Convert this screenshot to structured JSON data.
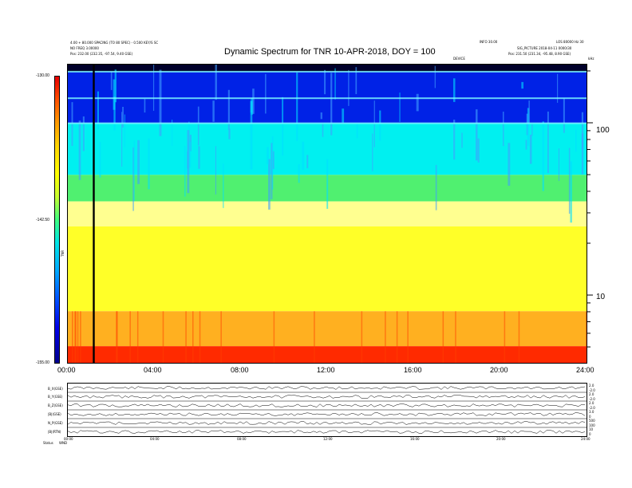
{
  "header": {
    "title": "Dynamic Spectrum for TNR 10-APR-2018, DOY = 100",
    "left_line1": "4.00 + 80.000 SPACING (TO 80 SPEC) - 0.500 KEY/S SC",
    "left_line2": "NO FREQ 3.00000",
    "left_line3": "Pos: 232.00 (232.35, -97.54, 9.40 GSE)",
    "right_top": "INFO 30.00",
    "right_top2": "LOS 80000 Hz 30",
    "right_line2": "SIG_PICTURE 2018-04-11 0000/30",
    "right_line3": "Pos: 231.50 (231.34, -95.48, 8.90 GSE)",
    "mid_label": "DEVICE",
    "corner": "kHz"
  },
  "colorbar": {
    "label": "TNR",
    "ticks": [
      "-130.00",
      "-142.50",
      "-155.00"
    ],
    "colors": [
      "#e60000",
      "#ffff00",
      "#00e6e6",
      "#0000e6",
      "#000090"
    ]
  },
  "chart_data": {
    "type": "heatmap",
    "title": "Dynamic Spectrum for TNR 10-APR-2018, DOY = 100",
    "x_ticks": [
      "00:00",
      "04:00",
      "08:00",
      "12:00",
      "16:00",
      "20:00",
      "24:00"
    ],
    "xlim": [
      0,
      24
    ],
    "y_right_ticks": [
      "100",
      "10"
    ],
    "y_scale": "log",
    "ylim_khz": [
      4,
      220
    ],
    "colorbar_range_db": [
      -155.0,
      -130.0
    ],
    "bands": [
      {
        "top_khz": 220,
        "bottom_khz": 200,
        "level": "dark-blue"
      },
      {
        "top_khz": 200,
        "bottom_khz": 100,
        "level": "blue"
      },
      {
        "top_khz": 100,
        "bottom_khz": 50,
        "level": "cyan"
      },
      {
        "top_khz": 50,
        "bottom_khz": 35,
        "level": "green"
      },
      {
        "top_khz": 35,
        "bottom_khz": 25,
        "level": "light-yellow"
      },
      {
        "top_khz": 25,
        "bottom_khz": 8,
        "level": "yellow"
      },
      {
        "top_khz": 8,
        "bottom_khz": 5,
        "level": "orange"
      },
      {
        "top_khz": 5,
        "bottom_khz": 4,
        "level": "red"
      }
    ],
    "data_gap_hours": [
      1.2
    ]
  },
  "bottom_panel": {
    "row_labels": [
      "B_X(GSE)",
      "B_Y(GSE)",
      "B_Z(GSE)",
      "|B|(GSE)",
      "N_P(GSE)",
      "|B|(RTN)"
    ],
    "right_ticks": [
      [
        "2.0",
        "-2.0"
      ],
      [
        "2.0",
        "-2.0"
      ],
      [
        "2.0",
        "-2.0"
      ],
      [
        "3.0",
        "0"
      ],
      [
        "500",
        "100"
      ],
      [
        "10",
        "0"
      ]
    ],
    "x_ticks": [
      "00:00",
      "04:00",
      "08:00",
      "12:00",
      "16:00",
      "20:00",
      "24:00"
    ],
    "footer_label": "Status",
    "footer_value": "WND"
  }
}
